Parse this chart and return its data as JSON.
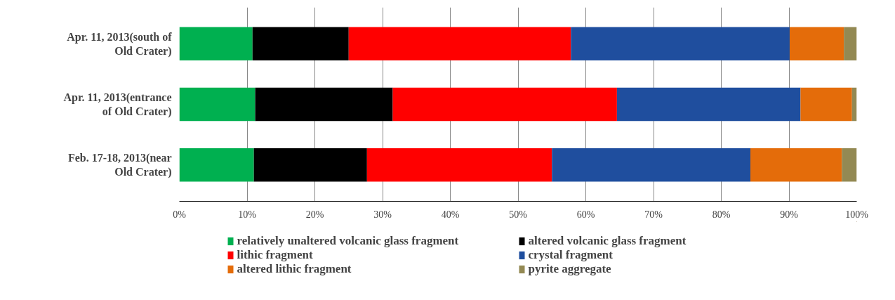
{
  "chart_data": {
    "type": "bar",
    "orientation": "horizontal",
    "stacked": true,
    "categories": [
      "Apr. 11, 2013(south of\nOld Crater)",
      "Apr. 11, 2013(entrance\nof Old Crater)",
      "Feb. 17-18, 2013(near\nOld Crater)"
    ],
    "series": [
      {
        "name": "relatively unaltered volcanic glass fragment",
        "color": "#00b050",
        "values": [
          10.8,
          11.2,
          11.0
        ]
      },
      {
        "name": "altered volcanic glass fragment",
        "color": "#000000",
        "values": [
          14.2,
          20.3,
          16.7
        ]
      },
      {
        "name": "lithic fragment",
        "color": "#ff0000",
        "values": [
          32.8,
          33.1,
          27.3
        ]
      },
      {
        "name": "crystal fragment",
        "color": "#1f4e9e",
        "values": [
          32.3,
          27.1,
          29.3
        ]
      },
      {
        "name": "altered lithic fragment",
        "color": "#e46c0a",
        "values": [
          8.0,
          7.6,
          13.5
        ]
      },
      {
        "name": "pyrite aggregate",
        "color": "#938953",
        "values": [
          1.9,
          0.7,
          2.2
        ]
      }
    ],
    "xlim": [
      0,
      100
    ],
    "xticks": [
      {
        "value": 0,
        "label": "0%"
      },
      {
        "value": 10,
        "label": "10%"
      },
      {
        "value": 20,
        "label": "20%"
      },
      {
        "value": 30,
        "label": "30%"
      },
      {
        "value": 40,
        "label": "40%"
      },
      {
        "value": 50,
        "label": "50%"
      },
      {
        "value": 60,
        "label": "60%"
      },
      {
        "value": 70,
        "label": "70%"
      },
      {
        "value": 80,
        "label": "80%"
      },
      {
        "value": 90,
        "label": "90%"
      },
      {
        "value": 100,
        "label": "100%"
      }
    ],
    "grid": "x",
    "legend": "bottom"
  }
}
